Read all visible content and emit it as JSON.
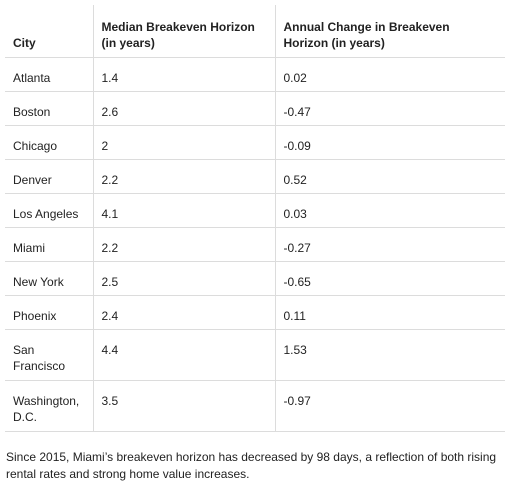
{
  "table": {
    "headers": [
      "City",
      "Median Breakeven Horizon (in years)",
      "Annual Change in Breakeven Horizon (in years)"
    ],
    "rows": [
      [
        "Atlanta",
        "1.4",
        "0.02"
      ],
      [
        "Boston",
        "2.6",
        "-0.47"
      ],
      [
        "Chicago",
        "2",
        "-0.09"
      ],
      [
        "Denver",
        "2.2",
        "0.52"
      ],
      [
        "Los Angeles",
        "4.1",
        "0.03"
      ],
      [
        "Miami",
        "2.2",
        "-0.27"
      ],
      [
        "New York",
        "2.5",
        "-0.65"
      ],
      [
        "Phoenix",
        "2.4",
        "0.11"
      ],
      [
        "San Francisco",
        "4.4",
        "1.53"
      ],
      [
        "Washington, D.C.",
        "3.5",
        "-0.97"
      ]
    ]
  },
  "note": "Since 2015, Miami’s breakeven horizon has decreased by 98 days, a reflection of both rising rental rates and strong home value increases."
}
